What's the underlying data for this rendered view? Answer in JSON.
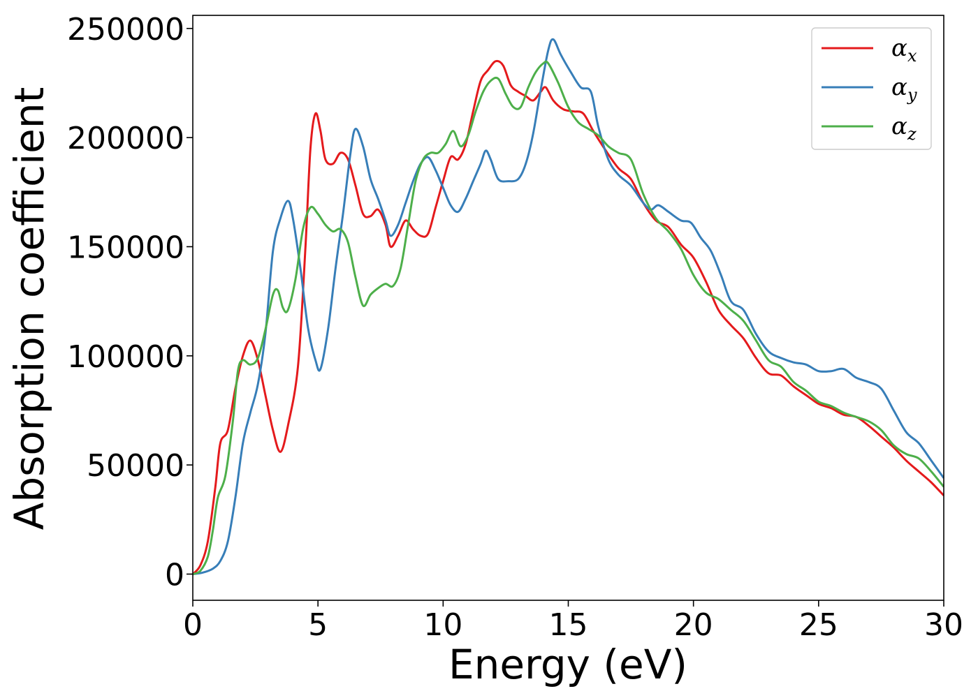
{
  "chart_data": {
    "type": "line",
    "xlabel": "Energy (eV)",
    "ylabel": "Absorption coefficient",
    "xlim": [
      0,
      30
    ],
    "ylim": [
      -12000,
      256000
    ],
    "xticks": [
      0,
      5,
      10,
      15,
      20,
      25,
      30
    ],
    "yticks": [
      0,
      50000,
      100000,
      150000,
      200000,
      250000
    ],
    "x_tick_labels": [
      "0",
      "5",
      "10",
      "15",
      "20",
      "25",
      "30"
    ],
    "y_tick_labels": [
      "0",
      "50000",
      "100000",
      "150000",
      "200000",
      "250000"
    ],
    "grid": false,
    "legend_position": "top-right",
    "series": [
      {
        "name": "α",
        "subscript": "x",
        "color": "#e41a1c",
        "points": [
          [
            0,
            0
          ],
          [
            0.3,
            4000
          ],
          [
            0.6,
            15000
          ],
          [
            0.9,
            40000
          ],
          [
            1.1,
            60000
          ],
          [
            1.4,
            66000
          ],
          [
            1.7,
            85000
          ],
          [
            2.0,
            100000
          ],
          [
            2.3,
            107000
          ],
          [
            2.6,
            98000
          ],
          [
            2.9,
            82000
          ],
          [
            3.2,
            66000
          ],
          [
            3.5,
            56000
          ],
          [
            3.8,
            68000
          ],
          [
            4.2,
            95000
          ],
          [
            4.5,
            150000
          ],
          [
            4.7,
            195000
          ],
          [
            4.9,
            211000
          ],
          [
            5.1,
            203000
          ],
          [
            5.3,
            190000
          ],
          [
            5.6,
            188000
          ],
          [
            5.9,
            193000
          ],
          [
            6.2,
            190000
          ],
          [
            6.5,
            178000
          ],
          [
            6.8,
            165000
          ],
          [
            7.1,
            164000
          ],
          [
            7.4,
            167000
          ],
          [
            7.7,
            160000
          ],
          [
            7.9,
            150000
          ],
          [
            8.2,
            155000
          ],
          [
            8.5,
            162000
          ],
          [
            8.8,
            158000
          ],
          [
            9.1,
            155000
          ],
          [
            9.4,
            156000
          ],
          [
            9.7,
            168000
          ],
          [
            10.0,
            180000
          ],
          [
            10.3,
            191000
          ],
          [
            10.6,
            190000
          ],
          [
            10.9,
            197000
          ],
          [
            11.2,
            212000
          ],
          [
            11.5,
            226000
          ],
          [
            11.8,
            231000
          ],
          [
            12.1,
            235000
          ],
          [
            12.4,
            233000
          ],
          [
            12.7,
            224000
          ],
          [
            13.0,
            221000
          ],
          [
            13.3,
            219000
          ],
          [
            13.6,
            217000
          ],
          [
            13.9,
            221000
          ],
          [
            14.1,
            223000
          ],
          [
            14.4,
            217000
          ],
          [
            14.8,
            213000
          ],
          [
            15.2,
            212000
          ],
          [
            15.6,
            211000
          ],
          [
            16.0,
            203000
          ],
          [
            16.5,
            194000
          ],
          [
            17.0,
            186000
          ],
          [
            17.5,
            181000
          ],
          [
            18.0,
            170000
          ],
          [
            18.5,
            162000
          ],
          [
            19.0,
            159000
          ],
          [
            19.5,
            151000
          ],
          [
            20.0,
            145000
          ],
          [
            20.5,
            134000
          ],
          [
            21.0,
            121000
          ],
          [
            21.5,
            114000
          ],
          [
            22.0,
            108000
          ],
          [
            22.5,
            99000
          ],
          [
            23.0,
            92000
          ],
          [
            23.5,
            91000
          ],
          [
            24.0,
            86000
          ],
          [
            24.5,
            82000
          ],
          [
            25.0,
            78000
          ],
          [
            25.5,
            76000
          ],
          [
            26.0,
            73000
          ],
          [
            26.5,
            72000
          ],
          [
            27.0,
            68000
          ],
          [
            27.5,
            63000
          ],
          [
            28.0,
            58000
          ],
          [
            28.5,
            52000
          ],
          [
            29.0,
            47000
          ],
          [
            29.5,
            42000
          ],
          [
            30.0,
            36000
          ]
        ]
      },
      {
        "name": "α",
        "subscript": "y",
        "color": "#377eb8",
        "points": [
          [
            0,
            0
          ],
          [
            0.4,
            700
          ],
          [
            0.8,
            2500
          ],
          [
            1.1,
            6000
          ],
          [
            1.4,
            15000
          ],
          [
            1.7,
            35000
          ],
          [
            2.0,
            60000
          ],
          [
            2.3,
            74000
          ],
          [
            2.6,
            87000
          ],
          [
            2.9,
            110000
          ],
          [
            3.2,
            148000
          ],
          [
            3.5,
            163000
          ],
          [
            3.8,
            171000
          ],
          [
            4.0,
            163000
          ],
          [
            4.3,
            140000
          ],
          [
            4.6,
            113000
          ],
          [
            4.9,
            98000
          ],
          [
            5.1,
            94000
          ],
          [
            5.4,
            112000
          ],
          [
            5.7,
            140000
          ],
          [
            6.0,
            165000
          ],
          [
            6.3,
            193000
          ],
          [
            6.5,
            204000
          ],
          [
            6.8,
            196000
          ],
          [
            7.1,
            181000
          ],
          [
            7.4,
            172000
          ],
          [
            7.7,
            162000
          ],
          [
            7.9,
            155000
          ],
          [
            8.2,
            160000
          ],
          [
            8.5,
            170000
          ],
          [
            8.8,
            180000
          ],
          [
            9.1,
            188000
          ],
          [
            9.4,
            191000
          ],
          [
            9.7,
            185000
          ],
          [
            10.0,
            177000
          ],
          [
            10.3,
            169000
          ],
          [
            10.6,
            166000
          ],
          [
            10.9,
            172000
          ],
          [
            11.2,
            180000
          ],
          [
            11.5,
            188000
          ],
          [
            11.7,
            194000
          ],
          [
            11.9,
            190000
          ],
          [
            12.2,
            181000
          ],
          [
            12.6,
            180000
          ],
          [
            13.0,
            181000
          ],
          [
            13.3,
            188000
          ],
          [
            13.6,
            202000
          ],
          [
            13.9,
            222000
          ],
          [
            14.2,
            240000
          ],
          [
            14.4,
            245000
          ],
          [
            14.7,
            238000
          ],
          [
            15.1,
            230000
          ],
          [
            15.5,
            223000
          ],
          [
            15.9,
            221000
          ],
          [
            16.2,
            205000
          ],
          [
            16.6,
            190000
          ],
          [
            17.0,
            183000
          ],
          [
            17.5,
            178000
          ],
          [
            18.0,
            170000
          ],
          [
            18.3,
            167000
          ],
          [
            18.6,
            169000
          ],
          [
            19.0,
            166000
          ],
          [
            19.5,
            162000
          ],
          [
            19.9,
            161000
          ],
          [
            20.3,
            154000
          ],
          [
            20.7,
            148000
          ],
          [
            21.1,
            137000
          ],
          [
            21.5,
            125000
          ],
          [
            22.0,
            121000
          ],
          [
            22.5,
            110000
          ],
          [
            23.0,
            102000
          ],
          [
            23.5,
            99000
          ],
          [
            24.0,
            97000
          ],
          [
            24.5,
            96000
          ],
          [
            25.0,
            93000
          ],
          [
            25.5,
            93000
          ],
          [
            26.0,
            94000
          ],
          [
            26.5,
            90000
          ],
          [
            27.0,
            88000
          ],
          [
            27.5,
            85000
          ],
          [
            28.0,
            75000
          ],
          [
            28.5,
            65000
          ],
          [
            29.0,
            60000
          ],
          [
            29.5,
            52000
          ],
          [
            30.0,
            44000
          ]
        ]
      },
      {
        "name": "α",
        "subscript": "z",
        "color": "#4daf4a",
        "points": [
          [
            0,
            0
          ],
          [
            0.3,
            1500
          ],
          [
            0.6,
            8000
          ],
          [
            0.8,
            20000
          ],
          [
            1.0,
            35000
          ],
          [
            1.3,
            45000
          ],
          [
            1.6,
            70000
          ],
          [
            1.8,
            93000
          ],
          [
            2.0,
            98000
          ],
          [
            2.3,
            96000
          ],
          [
            2.6,
            99000
          ],
          [
            2.9,
            112000
          ],
          [
            3.2,
            128000
          ],
          [
            3.4,
            130000
          ],
          [
            3.6,
            122000
          ],
          [
            3.8,
            121000
          ],
          [
            4.1,
            135000
          ],
          [
            4.4,
            158000
          ],
          [
            4.7,
            168000
          ],
          [
            5.0,
            165000
          ],
          [
            5.3,
            160000
          ],
          [
            5.6,
            157000
          ],
          [
            5.9,
            158000
          ],
          [
            6.2,
            152000
          ],
          [
            6.5,
            136000
          ],
          [
            6.8,
            123000
          ],
          [
            7.1,
            128000
          ],
          [
            7.4,
            131000
          ],
          [
            7.7,
            133000
          ],
          [
            8.0,
            132000
          ],
          [
            8.3,
            140000
          ],
          [
            8.6,
            160000
          ],
          [
            8.9,
            180000
          ],
          [
            9.2,
            190000
          ],
          [
            9.5,
            193000
          ],
          [
            9.8,
            193000
          ],
          [
            10.1,
            197000
          ],
          [
            10.4,
            203000
          ],
          [
            10.7,
            196000
          ],
          [
            11.0,
            201000
          ],
          [
            11.3,
            212000
          ],
          [
            11.6,
            221000
          ],
          [
            11.9,
            226000
          ],
          [
            12.2,
            227000
          ],
          [
            12.5,
            220000
          ],
          [
            12.8,
            214000
          ],
          [
            13.1,
            214000
          ],
          [
            13.4,
            223000
          ],
          [
            13.7,
            230000
          ],
          [
            14.0,
            234000
          ],
          [
            14.2,
            234000
          ],
          [
            14.6,
            225000
          ],
          [
            15.0,
            214000
          ],
          [
            15.4,
            207000
          ],
          [
            15.8,
            204000
          ],
          [
            16.2,
            201000
          ],
          [
            16.6,
            196000
          ],
          [
            17.0,
            193000
          ],
          [
            17.5,
            190000
          ],
          [
            18.0,
            174000
          ],
          [
            18.5,
            163000
          ],
          [
            19.0,
            157000
          ],
          [
            19.5,
            149000
          ],
          [
            20.0,
            137000
          ],
          [
            20.5,
            129000
          ],
          [
            21.0,
            126000
          ],
          [
            21.5,
            121000
          ],
          [
            22.0,
            116000
          ],
          [
            22.5,
            107000
          ],
          [
            23.0,
            98000
          ],
          [
            23.5,
            95000
          ],
          [
            24.0,
            88000
          ],
          [
            24.5,
            84000
          ],
          [
            25.0,
            79000
          ],
          [
            25.5,
            77000
          ],
          [
            26.0,
            74000
          ],
          [
            26.5,
            72000
          ],
          [
            27.0,
            70000
          ],
          [
            27.5,
            66000
          ],
          [
            28.0,
            59000
          ],
          [
            28.5,
            55000
          ],
          [
            29.0,
            53000
          ],
          [
            29.5,
            47000
          ],
          [
            30.0,
            40000
          ]
        ]
      }
    ]
  }
}
